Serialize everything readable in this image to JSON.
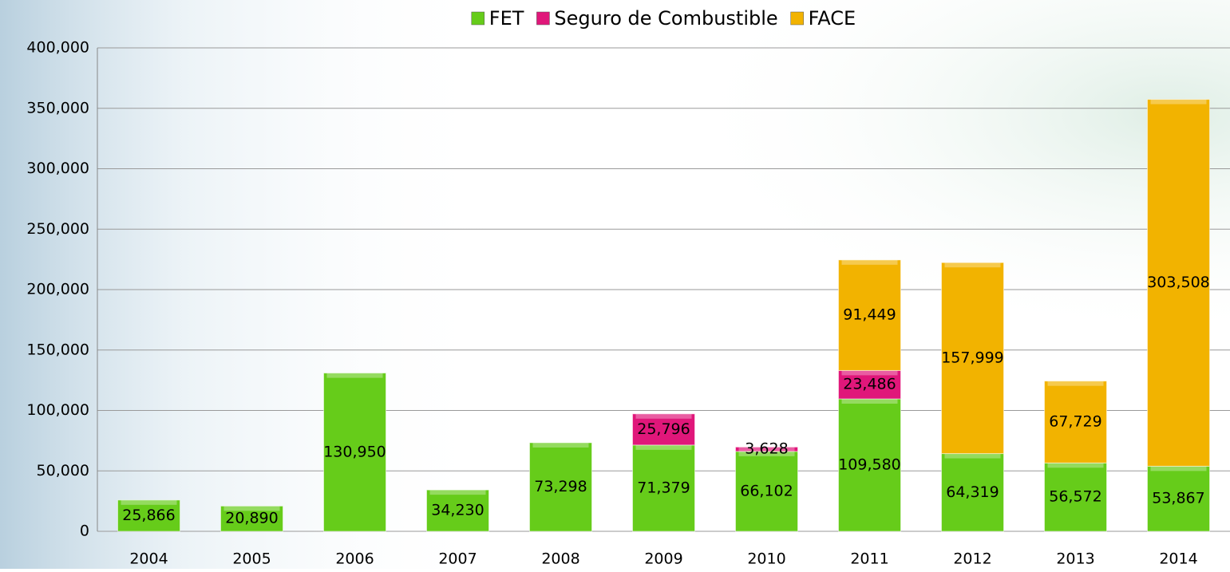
{
  "chart_data": {
    "type": "stacked_bar",
    "categories": [
      "2004",
      "2005",
      "2006",
      "2007",
      "2008",
      "2009",
      "2010",
      "2011",
      "2012",
      "2013",
      "2014"
    ],
    "series": [
      {
        "name": "FET",
        "color": "#66cc1a",
        "values": [
          25866,
          20890,
          130950,
          34230,
          73298,
          71379,
          66102,
          109580,
          64319,
          56572,
          53867
        ],
        "value_labels": [
          "25,866",
          "20,890",
          "130,950",
          "34,230",
          "73,298",
          "71,379",
          "66,102",
          "109,580",
          "64,319",
          "56,572",
          "53,867"
        ]
      },
      {
        "name": "Seguro de Combustible",
        "color": "#e0177a",
        "values": [
          null,
          null,
          null,
          null,
          null,
          25796,
          3628,
          23486,
          null,
          null,
          null
        ],
        "value_labels": [
          null,
          null,
          null,
          null,
          null,
          "25,796",
          "3,628",
          "23,486",
          null,
          null,
          null
        ]
      },
      {
        "name": "FACE",
        "color": "#f2b300",
        "values": [
          null,
          null,
          null,
          null,
          null,
          null,
          null,
          91449,
          157999,
          67729,
          303508
        ],
        "value_labels": [
          null,
          null,
          null,
          null,
          null,
          null,
          null,
          "91,449",
          "157,999",
          "67,729",
          "303,508"
        ]
      }
    ],
    "ylim": [
      0,
      400000
    ],
    "yticks": [
      0,
      {
        "value": 50000,
        "label": "50,000"
      },
      {
        "value": 100000,
        "label": "100,000"
      },
      {
        "value": 150000,
        "label": "150,000"
      },
      {
        "value": 200000,
        "label": "200,000"
      },
      {
        "value": 250000,
        "label": "250,000"
      },
      {
        "value": 300000,
        "label": "300,000"
      },
      {
        "value": 350000,
        "label": "350,000"
      },
      {
        "value": 400000,
        "label": "400,000"
      }
    ],
    "grid": true,
    "legend": "top"
  }
}
